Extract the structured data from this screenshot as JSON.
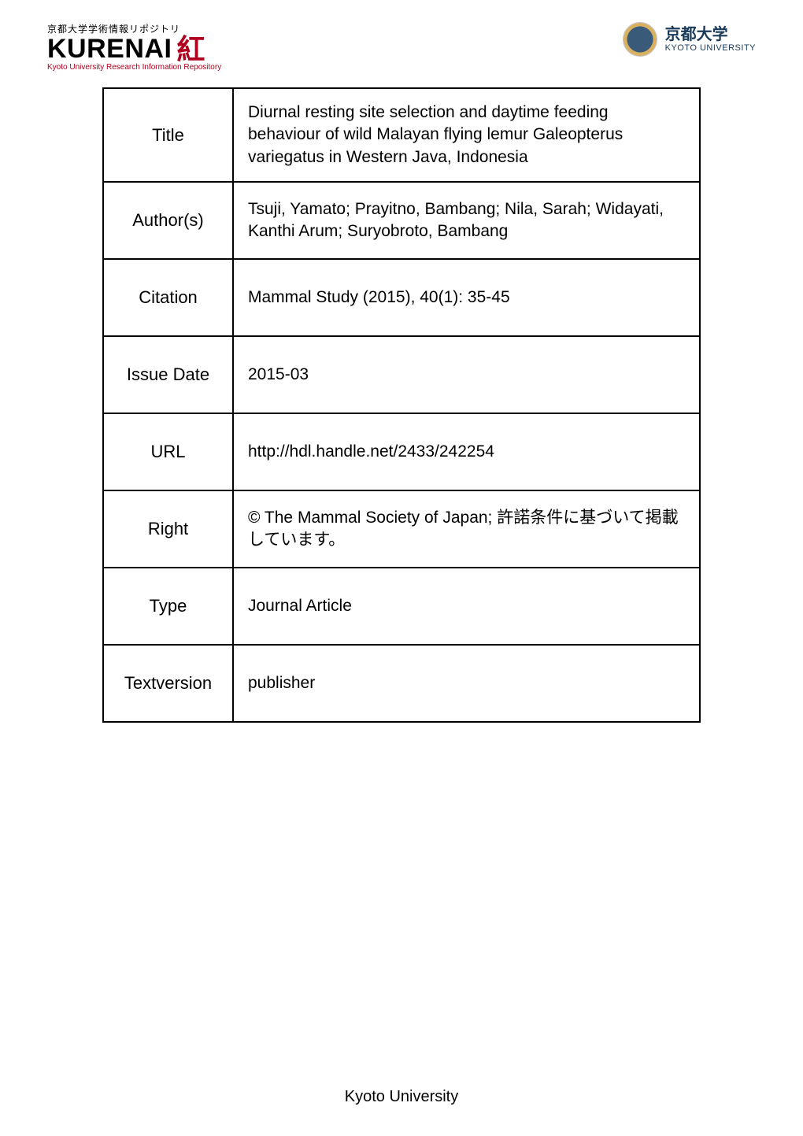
{
  "header": {
    "left": {
      "jp_tagline": "京都大学学術情報リポジトリ",
      "brand": "KURENAI",
      "icon_glyph": "紅",
      "subline": "Kyoto University Research Information Repository"
    },
    "right": {
      "jp": "京都大学",
      "en": "KYOTO UNIVERSITY",
      "crest_outer_color": "#d8b060",
      "crest_inner_color": "#3a5a7a"
    }
  },
  "table": {
    "border_color": "#000000",
    "label_font": "Comic Sans MS",
    "value_font": "Comic Sans MS",
    "rows": [
      {
        "label": "Title",
        "value": "Diurnal resting site selection and daytime feeding behaviour of wild Malayan flying lemur Galeopterus variegatus in Western Java, Indonesia"
      },
      {
        "label": "Author(s)",
        "value": "Tsuji, Yamato; Prayitno, Bambang; Nila, Sarah; Widayati, Kanthi Arum; Suryobroto, Bambang"
      },
      {
        "label": "Citation",
        "value": "Mammal Study (2015), 40(1): 35-45"
      },
      {
        "label": "Issue Date",
        "value": "2015-03"
      },
      {
        "label": "URL",
        "value": "http://hdl.handle.net/2433/242254"
      },
      {
        "label": "Right",
        "value": "© The Mammal Society of Japan; 許諾条件に基づいて掲載しています。"
      },
      {
        "label": "Type",
        "value": "Journal Article"
      },
      {
        "label": "Textversion",
        "value": "publisher"
      }
    ]
  },
  "footer": {
    "text": "Kyoto University"
  },
  "colors": {
    "background": "#ffffff",
    "text": "#000000",
    "accent_red": "#b00020",
    "uni_blue": "#1a3a5a"
  }
}
